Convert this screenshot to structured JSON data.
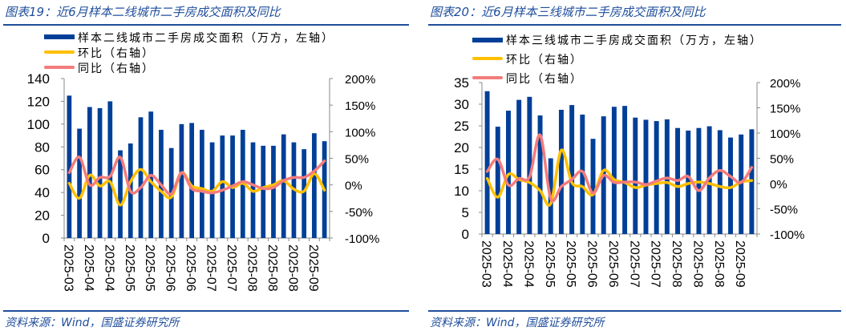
{
  "colors": {
    "bar": "#003f98",
    "mom": "#ffc000",
    "yoy": "#f47c7c",
    "brand": "#1f4e9c"
  },
  "chart_data": [
    {
      "type": "bar",
      "title": "图表19：近6月样本二线城市二手房成交面积及同比",
      "source": "资料来源：Wind，国盛证券研究所",
      "legend": [
        "样本二线城市二手房成交面积（万方，左轴）",
        "环比（右轴）",
        "同比（右轴）"
      ],
      "legend_position": "top-left",
      "x_tick_labels": [
        "2025-03",
        "2025-04",
        "2025-04",
        "2025-05",
        "2025-05",
        "2025-06",
        "2025-06",
        "2025-07",
        "2025-07",
        "2025-08",
        "2025-08",
        "2025-08",
        "2025-09"
      ],
      "ylim": [
        0,
        140
      ],
      "yticks": [
        "0",
        "20",
        "40",
        "60",
        "80",
        "100",
        "120",
        "140"
      ],
      "y2lim": [
        -100,
        200
      ],
      "y2ticks": [
        "-100%",
        "-50%",
        "0%",
        "50%",
        "100%",
        "150%",
        "200%"
      ],
      "series": [
        {
          "name": "样本二线城市二手房成交面积（万方，左轴）",
          "type": "bar",
          "axis": "left",
          "values": [
            125,
            96,
            115,
            114,
            120,
            77,
            83,
            106,
            111,
            95,
            79,
            100,
            101,
            95,
            84,
            90,
            90,
            95,
            84,
            81,
            81,
            91,
            84,
            78,
            92,
            85
          ]
        },
        {
          "name": "环比（右轴）",
          "type": "line",
          "axis": "right",
          "values": [
            3,
            -25,
            18,
            -2,
            6,
            -38,
            6,
            29,
            6,
            -12,
            -23,
            23,
            -2,
            -7,
            -12,
            6,
            -5,
            3,
            -12,
            -5,
            0,
            8,
            -8,
            -12,
            21,
            -10
          ]
        },
        {
          "name": "同比（右轴）",
          "type": "line",
          "axis": "right",
          "values": [
            23,
            52,
            0,
            14,
            16,
            52,
            -12,
            -5,
            18,
            0,
            -17,
            23,
            -7,
            -12,
            -15,
            -10,
            -2,
            6,
            0,
            -7,
            -5,
            8,
            14,
            14,
            26,
            45
          ]
        }
      ]
    },
    {
      "type": "bar",
      "title": "图表20：近6月样本三线城市二手房成交面积及同比",
      "source": "资料来源：Wind，国盛证券研究所",
      "legend": [
        "样本三线城市二手房成交面积（万方，左轴）",
        "环比（右轴）",
        "同比（右轴）"
      ],
      "legend_position": "top-left",
      "x_tick_labels": [
        "2025-03",
        "2025-04",
        "2025-04",
        "2025-05",
        "2025-05",
        "2025-06",
        "2025-06",
        "2025-07",
        "2025-07",
        "2025-08",
        "2025-08",
        "2025-08",
        "2025-09"
      ],
      "ylim": [
        0,
        35
      ],
      "yticks": [
        "0",
        "5",
        "10",
        "15",
        "20",
        "25",
        "30",
        "35"
      ],
      "y2lim": [
        -100,
        200
      ],
      "y2ticks": [
        "-100%",
        "-50%",
        "0%",
        "50%",
        "100%",
        "150%",
        "200%"
      ],
      "series": [
        {
          "name": "样本三线城市二手房成交面积（万方，左轴）",
          "type": "bar",
          "axis": "left",
          "values": [
            33,
            24.8,
            28.5,
            31,
            31.7,
            27.4,
            17.5,
            28.7,
            29.8,
            27.6,
            22,
            27.2,
            29.4,
            29.6,
            26.9,
            26.4,
            26.1,
            26.5,
            24.5,
            23.9,
            24.5,
            24.9,
            24,
            22.3,
            23,
            24.2
          ]
        },
        {
          "name": "环比（右轴）",
          "type": "line",
          "axis": "right",
          "values": [
            10,
            -27,
            18,
            8,
            2,
            -14,
            -40,
            66,
            2,
            -6,
            -22,
            26,
            8,
            2,
            -8,
            -3,
            0,
            2,
            -6,
            0,
            3,
            0,
            -6,
            -8,
            3,
            6
          ]
        },
        {
          "name": "同比（右轴）",
          "type": "line",
          "axis": "right",
          "values": [
            24,
            48,
            -3,
            10,
            13,
            96,
            -30,
            -6,
            8,
            24,
            -19,
            16,
            2,
            3,
            3,
            -2,
            5,
            11,
            6,
            14,
            -14,
            11,
            26,
            14,
            2,
            32
          ]
        }
      ]
    }
  ]
}
